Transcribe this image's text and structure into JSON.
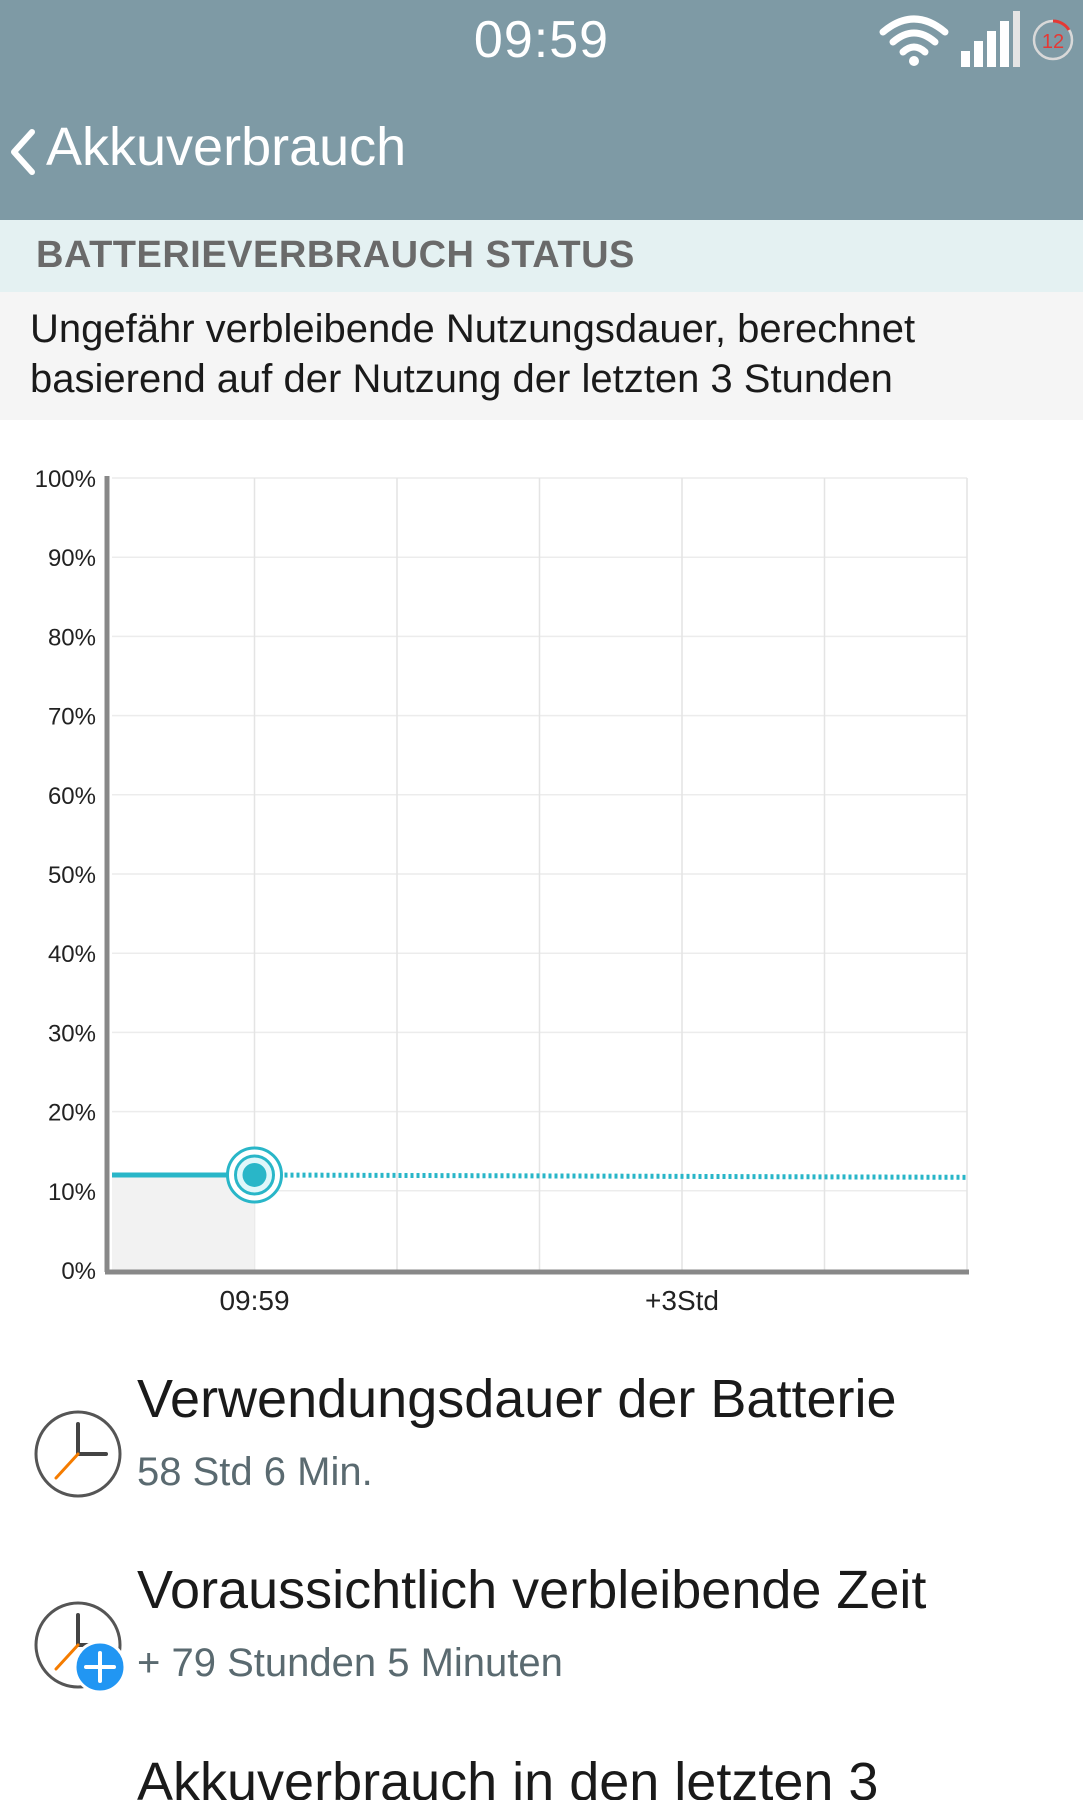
{
  "status_bar": {
    "time": "09:59",
    "notification_count": "12"
  },
  "action_bar": {
    "title": "Akkuverbrauch"
  },
  "section": {
    "header": "BATTERIEVERBRAUCH STATUS",
    "description": "Ungefähr verbleibende Nutzungsdauer, berechnet basierend auf der Nutzung der letzten 3 Stunden"
  },
  "chart_data": {
    "type": "line",
    "y_ticks": [
      "100%",
      "90%",
      "80%",
      "70%",
      "60%",
      "50%",
      "40%",
      "30%",
      "20%",
      "10%",
      "0%"
    ],
    "x_labels": [
      {
        "label": "09:59",
        "hours": 0
      },
      {
        "label": "+3Std",
        "hours": 3
      }
    ],
    "x_range_hours": [
      -1,
      5
    ],
    "ylim": [
      0,
      100
    ],
    "grid": true,
    "series": [
      {
        "style": "solid",
        "color": "#29b6c8",
        "points": [
          [
            -1,
            12
          ],
          [
            0,
            12
          ]
        ]
      },
      {
        "style": "dotted",
        "color": "#29b6c8",
        "points": [
          [
            0,
            12
          ],
          [
            5,
            11.7
          ]
        ]
      }
    ],
    "current_point": {
      "hours": 0,
      "value": 12
    }
  },
  "stats": [
    {
      "label": "Verwendungsdauer der Batterie",
      "value": "58 Std 6 Min."
    },
    {
      "label": "Voraussichtlich verbleibende Zeit",
      "value": "+ 79 Stunden 5 Minuten"
    },
    {
      "label": "Akkuverbrauch in den letzten 3"
    }
  ]
}
